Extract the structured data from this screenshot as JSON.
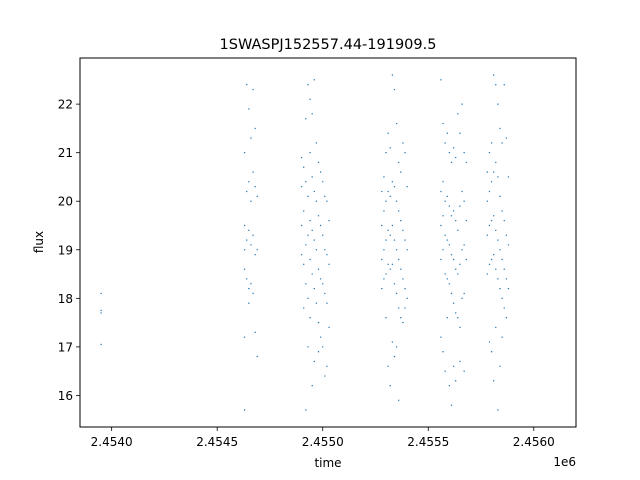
{
  "chart_data": {
    "type": "scatter",
    "title": "1SWASPJ152557.44-191909.5",
    "xlabel": "time",
    "ylabel": "flux",
    "x_offset_label": "1e6",
    "xlim": [
      2.45385,
      2.4562
    ],
    "ylim": [
      15.35,
      22.95
    ],
    "x_ticks": [
      {
        "value": 2.454,
        "label": "2.4540"
      },
      {
        "value": 2.4545,
        "label": "2.4545"
      },
      {
        "value": 2.455,
        "label": "2.4550"
      },
      {
        "value": 2.4555,
        "label": "2.4555"
      },
      {
        "value": 2.456,
        "label": "2.4560"
      }
    ],
    "y_ticks": [
      {
        "value": 16,
        "label": "16"
      },
      {
        "value": 17,
        "label": "17"
      },
      {
        "value": 18,
        "label": "18"
      },
      {
        "value": 19,
        "label": "19"
      },
      {
        "value": 20,
        "label": "20"
      },
      {
        "value": 21,
        "label": "21"
      },
      {
        "value": 22,
        "label": "22"
      }
    ],
    "grid": false,
    "marker_color": "#1f77b4",
    "series": [
      {
        "points": [
          [
            2.45395,
            18.1
          ],
          [
            2.45395,
            17.75
          ],
          [
            2.45395,
            17.7
          ],
          [
            2.45395,
            17.05
          ],
          [
            2.45463,
            21.0
          ],
          [
            2.45463,
            19.5
          ],
          [
            2.45463,
            19.0
          ],
          [
            2.45463,
            18.6
          ],
          [
            2.45463,
            17.2
          ],
          [
            2.45463,
            15.7
          ],
          [
            2.45464,
            22.4
          ],
          [
            2.45464,
            20.2
          ],
          [
            2.45464,
            19.2
          ],
          [
            2.45464,
            18.4
          ],
          [
            2.45465,
            21.9
          ],
          [
            2.45465,
            20.4
          ],
          [
            2.45465,
            19.4
          ],
          [
            2.45465,
            18.2
          ],
          [
            2.45465,
            17.9
          ],
          [
            2.45466,
            21.3
          ],
          [
            2.45466,
            20.0
          ],
          [
            2.45466,
            19.1
          ],
          [
            2.45466,
            18.3
          ],
          [
            2.45467,
            22.3
          ],
          [
            2.45467,
            20.6
          ],
          [
            2.45467,
            19.3
          ],
          [
            2.45467,
            18.1
          ],
          [
            2.45468,
            21.5
          ],
          [
            2.45468,
            20.3
          ],
          [
            2.45468,
            18.9
          ],
          [
            2.45468,
            17.3
          ],
          [
            2.45469,
            20.1
          ],
          [
            2.45469,
            19.0
          ],
          [
            2.45469,
            16.8
          ],
          [
            2.4549,
            20.9
          ],
          [
            2.4549,
            20.3
          ],
          [
            2.4549,
            19.5
          ],
          [
            2.4549,
            18.9
          ],
          [
            2.45491,
            20.7
          ],
          [
            2.45491,
            19.8
          ],
          [
            2.45491,
            18.7
          ],
          [
            2.45491,
            17.8
          ],
          [
            2.45492,
            21.7
          ],
          [
            2.45492,
            20.4
          ],
          [
            2.45492,
            19.1
          ],
          [
            2.45492,
            18.3
          ],
          [
            2.45492,
            15.7
          ],
          [
            2.45493,
            22.4
          ],
          [
            2.45493,
            20.1
          ],
          [
            2.45493,
            19.3
          ],
          [
            2.45493,
            18.0
          ],
          [
            2.45493,
            17.0
          ],
          [
            2.45494,
            22.1
          ],
          [
            2.45494,
            21.0
          ],
          [
            2.45494,
            19.6
          ],
          [
            2.45494,
            18.8
          ],
          [
            2.45494,
            17.6
          ],
          [
            2.45495,
            21.8
          ],
          [
            2.45495,
            20.5
          ],
          [
            2.45495,
            19.4
          ],
          [
            2.45495,
            18.5
          ],
          [
            2.45495,
            16.2
          ],
          [
            2.45496,
            22.5
          ],
          [
            2.45496,
            20.2
          ],
          [
            2.45496,
            19.2
          ],
          [
            2.45496,
            18.2
          ],
          [
            2.45496,
            16.7
          ],
          [
            2.45497,
            21.2
          ],
          [
            2.45497,
            20.0
          ],
          [
            2.45497,
            19.0
          ],
          [
            2.45497,
            17.9
          ],
          [
            2.45498,
            20.8
          ],
          [
            2.45498,
            19.7
          ],
          [
            2.45498,
            18.6
          ],
          [
            2.45498,
            17.5
          ],
          [
            2.45498,
            16.9
          ],
          [
            2.45499,
            20.6
          ],
          [
            2.45499,
            19.5
          ],
          [
            2.45499,
            18.4
          ],
          [
            2.45499,
            17.2
          ],
          [
            2.455,
            20.4
          ],
          [
            2.455,
            19.3
          ],
          [
            2.455,
            18.3
          ],
          [
            2.455,
            17.0
          ],
          [
            2.45501,
            20.1
          ],
          [
            2.45501,
            19.0
          ],
          [
            2.45501,
            18.1
          ],
          [
            2.45501,
            16.4
          ],
          [
            2.45502,
            20.0
          ],
          [
            2.45502,
            18.9
          ],
          [
            2.45502,
            17.9
          ],
          [
            2.45502,
            16.6
          ],
          [
            2.45503,
            19.6
          ],
          [
            2.45503,
            18.7
          ],
          [
            2.45503,
            17.4
          ],
          [
            2.45528,
            20.2
          ],
          [
            2.45528,
            19.5
          ],
          [
            2.45528,
            18.8
          ],
          [
            2.45528,
            18.2
          ],
          [
            2.45529,
            20.5
          ],
          [
            2.45529,
            19.8
          ],
          [
            2.45529,
            19.0
          ],
          [
            2.45529,
            18.4
          ],
          [
            2.4553,
            21.0
          ],
          [
            2.4553,
            20.0
          ],
          [
            2.4553,
            19.2
          ],
          [
            2.4553,
            18.5
          ],
          [
            2.4553,
            17.6
          ],
          [
            2.45531,
            21.4
          ],
          [
            2.45531,
            20.2
          ],
          [
            2.45531,
            19.4
          ],
          [
            2.45531,
            18.7
          ],
          [
            2.45531,
            16.6
          ],
          [
            2.45532,
            21.1
          ],
          [
            2.45532,
            20.1
          ],
          [
            2.45532,
            19.3
          ],
          [
            2.45532,
            18.6
          ],
          [
            2.45532,
            16.2
          ],
          [
            2.45533,
            22.6
          ],
          [
            2.45533,
            20.4
          ],
          [
            2.45533,
            19.5
          ],
          [
            2.45533,
            18.7
          ],
          [
            2.45533,
            17.1
          ],
          [
            2.45534,
            22.3
          ],
          [
            2.45534,
            20.3
          ],
          [
            2.45534,
            19.2
          ],
          [
            2.45534,
            18.3
          ],
          [
            2.45534,
            16.8
          ],
          [
            2.45535,
            21.6
          ],
          [
            2.45535,
            20.0
          ],
          [
            2.45535,
            19.0
          ],
          [
            2.45535,
            18.1
          ],
          [
            2.45535,
            17.0
          ],
          [
            2.45536,
            20.8
          ],
          [
            2.45536,
            19.8
          ],
          [
            2.45536,
            18.8
          ],
          [
            2.45536,
            17.8
          ],
          [
            2.45536,
            15.9
          ],
          [
            2.45537,
            20.6
          ],
          [
            2.45537,
            19.6
          ],
          [
            2.45537,
            18.6
          ],
          [
            2.45537,
            17.6
          ],
          [
            2.45538,
            21.2
          ],
          [
            2.45538,
            19.4
          ],
          [
            2.45538,
            18.4
          ],
          [
            2.45538,
            17.5
          ],
          [
            2.45539,
            21.0
          ],
          [
            2.45539,
            19.2
          ],
          [
            2.45539,
            18.2
          ],
          [
            2.45539,
            17.8
          ],
          [
            2.4554,
            20.3
          ],
          [
            2.4554,
            19.0
          ],
          [
            2.4554,
            18.0
          ],
          [
            2.45556,
            22.5
          ],
          [
            2.45556,
            20.2
          ],
          [
            2.45556,
            19.5
          ],
          [
            2.45556,
            18.8
          ],
          [
            2.45556,
            17.2
          ],
          [
            2.45557,
            21.6
          ],
          [
            2.45557,
            20.4
          ],
          [
            2.45557,
            19.7
          ],
          [
            2.45557,
            19.0
          ],
          [
            2.45557,
            16.9
          ],
          [
            2.45558,
            21.2
          ],
          [
            2.45558,
            20.0
          ],
          [
            2.45558,
            19.3
          ],
          [
            2.45558,
            18.5
          ],
          [
            2.45558,
            16.5
          ],
          [
            2.45559,
            21.4
          ],
          [
            2.45559,
            20.1
          ],
          [
            2.45559,
            19.2
          ],
          [
            2.45559,
            18.4
          ],
          [
            2.45559,
            17.6
          ],
          [
            2.4556,
            21.0
          ],
          [
            2.4556,
            19.9
          ],
          [
            2.4556,
            19.1
          ],
          [
            2.4556,
            18.3
          ],
          [
            2.4556,
            16.2
          ],
          [
            2.45561,
            20.8
          ],
          [
            2.45561,
            19.7
          ],
          [
            2.45561,
            18.9
          ],
          [
            2.45561,
            18.1
          ],
          [
            2.45561,
            15.8
          ],
          [
            2.45562,
            21.1
          ],
          [
            2.45562,
            19.8
          ],
          [
            2.45562,
            18.8
          ],
          [
            2.45562,
            17.9
          ],
          [
            2.45562,
            16.6
          ],
          [
            2.45563,
            20.9
          ],
          [
            2.45563,
            19.6
          ],
          [
            2.45563,
            18.6
          ],
          [
            2.45563,
            17.7
          ],
          [
            2.45563,
            16.3
          ],
          [
            2.45564,
            21.8
          ],
          [
            2.45564,
            19.4
          ],
          [
            2.45564,
            18.5
          ],
          [
            2.45564,
            17.6
          ],
          [
            2.45565,
            21.4
          ],
          [
            2.45565,
            19.9
          ],
          [
            2.45565,
            18.7
          ],
          [
            2.45565,
            17.4
          ],
          [
            2.45565,
            16.7
          ],
          [
            2.45566,
            22.0
          ],
          [
            2.45566,
            20.2
          ],
          [
            2.45566,
            19.0
          ],
          [
            2.45566,
            18.0
          ],
          [
            2.45567,
            21.0
          ],
          [
            2.45567,
            20.0
          ],
          [
            2.45567,
            19.1
          ],
          [
            2.45567,
            18.1
          ],
          [
            2.45567,
            16.5
          ],
          [
            2.45568,
            20.8
          ],
          [
            2.45568,
            19.6
          ],
          [
            2.45568,
            18.8
          ],
          [
            2.45578,
            20.6
          ],
          [
            2.45578,
            20.0
          ],
          [
            2.45578,
            19.3
          ],
          [
            2.45578,
            18.5
          ],
          [
            2.45579,
            21.0
          ],
          [
            2.45579,
            20.2
          ],
          [
            2.45579,
            19.5
          ],
          [
            2.45579,
            18.7
          ],
          [
            2.45579,
            17.1
          ],
          [
            2.4558,
            21.2
          ],
          [
            2.4558,
            20.4
          ],
          [
            2.4558,
            19.6
          ],
          [
            2.4558,
            18.8
          ],
          [
            2.4558,
            16.9
          ],
          [
            2.45581,
            22.6
          ],
          [
            2.45581,
            20.6
          ],
          [
            2.45581,
            19.7
          ],
          [
            2.45581,
            18.9
          ],
          [
            2.45581,
            16.3
          ],
          [
            2.45582,
            22.4
          ],
          [
            2.45582,
            20.8
          ],
          [
            2.45582,
            19.4
          ],
          [
            2.45582,
            18.6
          ],
          [
            2.45582,
            17.4
          ],
          [
            2.45583,
            22.0
          ],
          [
            2.45583,
            20.5
          ],
          [
            2.45583,
            19.2
          ],
          [
            2.45583,
            18.4
          ],
          [
            2.45583,
            15.7
          ],
          [
            2.45584,
            21.5
          ],
          [
            2.45584,
            20.1
          ],
          [
            2.45584,
            19.0
          ],
          [
            2.45584,
            18.2
          ],
          [
            2.45584,
            16.6
          ],
          [
            2.45585,
            21.2
          ],
          [
            2.45585,
            19.8
          ],
          [
            2.45585,
            18.8
          ],
          [
            2.45585,
            18.0
          ],
          [
            2.45585,
            17.2
          ],
          [
            2.45586,
            22.4
          ],
          [
            2.45586,
            19.6
          ],
          [
            2.45586,
            18.6
          ],
          [
            2.45586,
            17.8
          ],
          [
            2.45587,
            21.3
          ],
          [
            2.45587,
            19.3
          ],
          [
            2.45587,
            18.4
          ],
          [
            2.45587,
            17.6
          ],
          [
            2.45588,
            20.5
          ],
          [
            2.45588,
            19.1
          ],
          [
            2.45588,
            18.2
          ]
        ]
      }
    ]
  }
}
